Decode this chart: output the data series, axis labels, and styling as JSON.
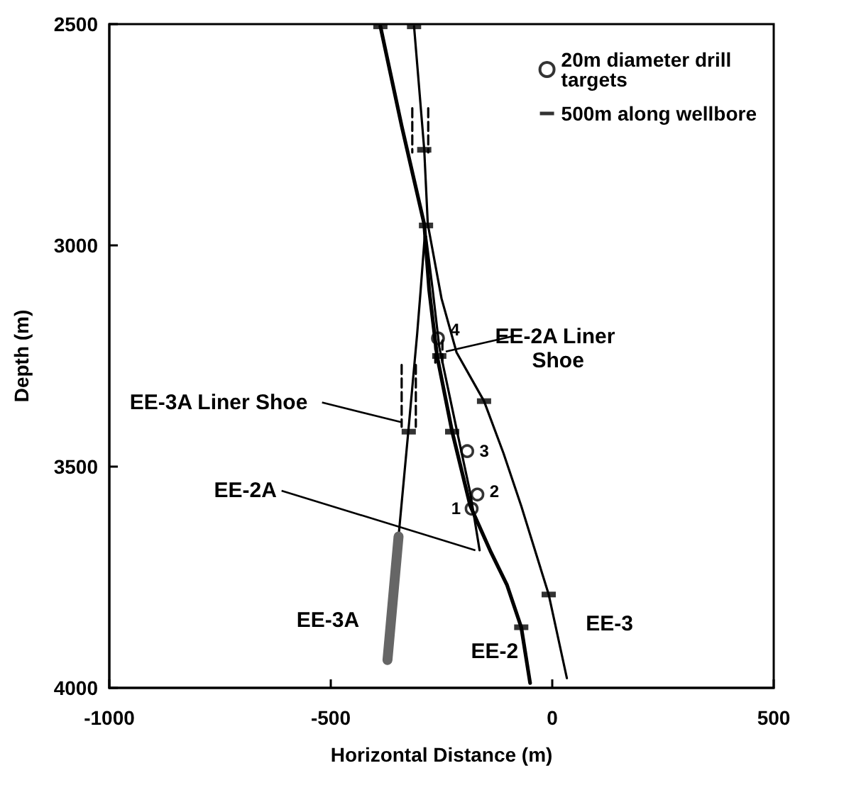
{
  "chart_data": {
    "type": "line",
    "xlabel": "Horizontal Distance (m)",
    "ylabel": "Depth (m)",
    "xlim": [
      -1000,
      500
    ],
    "xticks": [
      -1000,
      -500,
      0,
      500
    ],
    "ylim": [
      4000,
      2500
    ],
    "yticks": [
      2500,
      3000,
      3500,
      4000
    ],
    "grid": false,
    "legend": "top right",
    "line_style": "solid",
    "marker": "none",
    "annotations": [
      {
        "text": "EE-3A Liner Shoe",
        "x": -330,
        "y": 3400
      },
      {
        "text": "EE-2A Liner Shoe",
        "x": -250,
        "y": 3240
      },
      {
        "text": "4",
        "x": -258,
        "y": 3210
      },
      {
        "text": "3",
        "x": -192,
        "y": 3465
      },
      {
        "text": "2",
        "x": -169,
        "y": 3563
      },
      {
        "text": "1",
        "x": -182,
        "y": 3595
      }
    ],
    "series": [
      {
        "name": "EE-2",
        "color": "#000000",
        "x": [
          -388,
          -340,
          -289,
          -278,
          -260,
          -226,
          -185,
          -140,
          -102,
          -70,
          -50
        ],
        "values": [
          2505,
          2730,
          2952,
          3100,
          3250,
          3421,
          3589,
          3690,
          3768,
          3863,
          3989
        ]
      },
      {
        "name": "EE-3",
        "color": "#000000",
        "x": [
          -312,
          -300,
          -289,
          -281,
          -250,
          -216,
          -154,
          -110,
          -70,
          -8,
          33
        ],
        "values": [
          2505,
          2650,
          2784,
          2952,
          3120,
          3242,
          3352,
          3470,
          3589,
          3789,
          3978
        ]
      },
      {
        "name": "EE-2A",
        "color": "#000000",
        "x": [
          -285,
          -270,
          -255,
          -215,
          -185,
          -164
        ],
        "values": [
          2980,
          3100,
          3230,
          3420,
          3560,
          3689
        ]
      },
      {
        "name": "EE-3A",
        "color": "#000000",
        "x": [
          -288,
          -297,
          -305,
          -325,
          -347,
          -372
        ],
        "values": [
          2980,
          3100,
          3200,
          3421,
          3658,
          3937
        ]
      },
      {
        "color": "#666666",
        "x": [
          -347,
          -372
        ],
        "values": [
          3658,
          3937
        ]
      },
      {
        "line_style": "dashed",
        "color": "#000000",
        "x": [
          -340,
          -340
        ],
        "values": [
          3270,
          3410
        ]
      },
      {
        "line_style": "dashed",
        "color": "#000000",
        "x": [
          -308,
          -308
        ],
        "values": [
          3270,
          3410
        ]
      },
      {
        "line_style": "dashed",
        "color": "#000000",
        "x": [
          -316,
          -316
        ],
        "values": [
          2690,
          2790
        ]
      },
      {
        "line_style": "dashed",
        "color": "#000000",
        "x": [
          -280,
          -280
        ],
        "values": [
          2690,
          2790
        ]
      },
      {
        "line_style": "dashed",
        "color": "#000000",
        "x": [
          -264,
          -264
        ],
        "values": [
          3215,
          3265
        ]
      },
      {
        "line_style": "dashed",
        "color": "#000000",
        "x": [
          -248,
          -248
        ],
        "values": [
          3215,
          3265
        ]
      },
      {
        "name": "20m diameter drill targets",
        "type": "scatter",
        "marker": "circle",
        "color": "#000000",
        "x": [
          -258,
          -192,
          -169,
          -182
        ],
        "values": [
          3210,
          3465,
          3563,
          3595
        ]
      },
      {
        "name": "500m along wellbore",
        "type": "scatter",
        "marker": "square",
        "color": "#000000",
        "x": [
          -388,
          -312,
          -289,
          -285,
          -226,
          -70,
          -154,
          -8,
          -324,
          -255
        ],
        "values": [
          2505,
          2505,
          2784,
          2955,
          3421,
          3863,
          3352,
          3789,
          3421,
          3250
        ]
      }
    ]
  }
}
